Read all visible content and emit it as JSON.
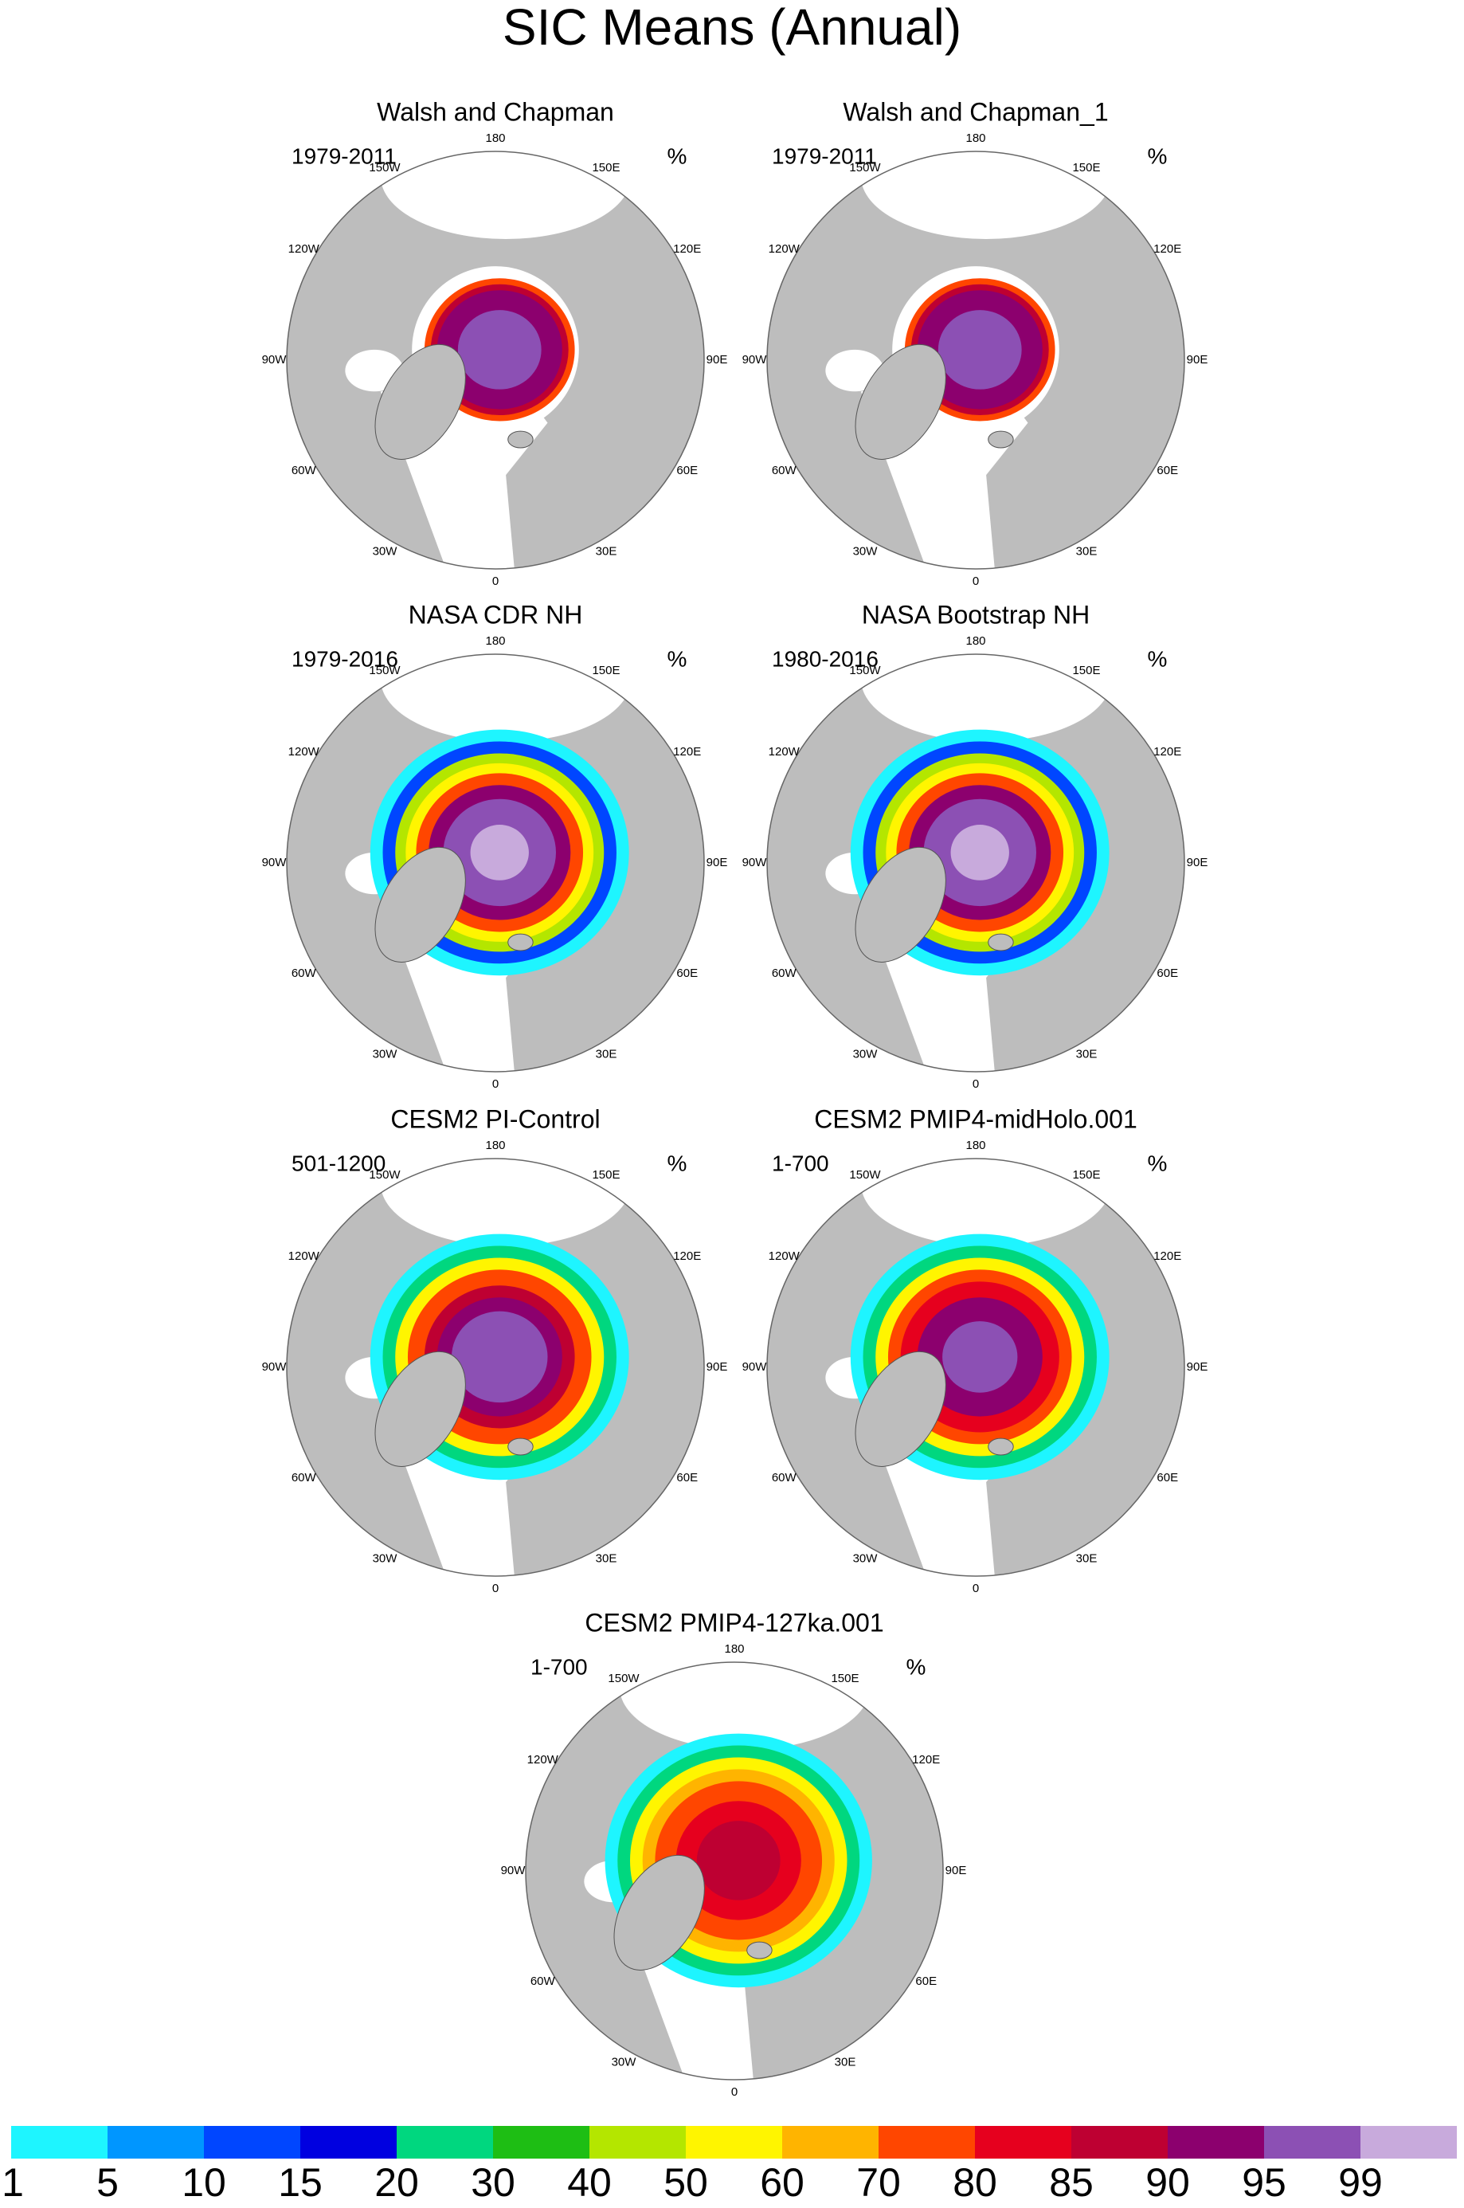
{
  "title": "SIC Means (Annual)",
  "panels": [
    {
      "title": "Walsh and Chapman",
      "period": "1979-2011",
      "unit": "%"
    },
    {
      "title": "Walsh and Chapman_1",
      "period": "1979-2011",
      "unit": "%"
    },
    {
      "title": "NASA CDR NH",
      "period": "1979-2016",
      "unit": "%"
    },
    {
      "title": "NASA Bootstrap NH",
      "period": "1980-2016",
      "unit": "%"
    },
    {
      "title": "CESM2 PI-Control",
      "period": "501-1200",
      "unit": "%"
    },
    {
      "title": "CESM2 PMIP4-midHolo.001",
      "period": "1-700",
      "unit": "%"
    },
    {
      "title": "CESM2 PMIP4-127ka.001",
      "period": "1-700",
      "unit": "%"
    }
  ],
  "longitude_labels": [
    "180",
    "150E",
    "120E",
    "90E",
    "60E",
    "30E",
    "0",
    "30W",
    "60W",
    "90W",
    "120W",
    "150W"
  ],
  "colorbar": {
    "colors": [
      "#1ef5ff",
      "#0096ff",
      "#0046ff",
      "#0000e0",
      "#00d77f",
      "#1ebe14",
      "#b4e600",
      "#fff500",
      "#ffb400",
      "#ff4600",
      "#e6001e",
      "#be0032",
      "#8c006e",
      "#8c50b4",
      "#c8aadc"
    ],
    "labels": [
      1,
      5,
      10,
      15,
      20,
      30,
      40,
      50,
      60,
      70,
      80,
      85,
      90,
      95,
      99
    ]
  }
}
